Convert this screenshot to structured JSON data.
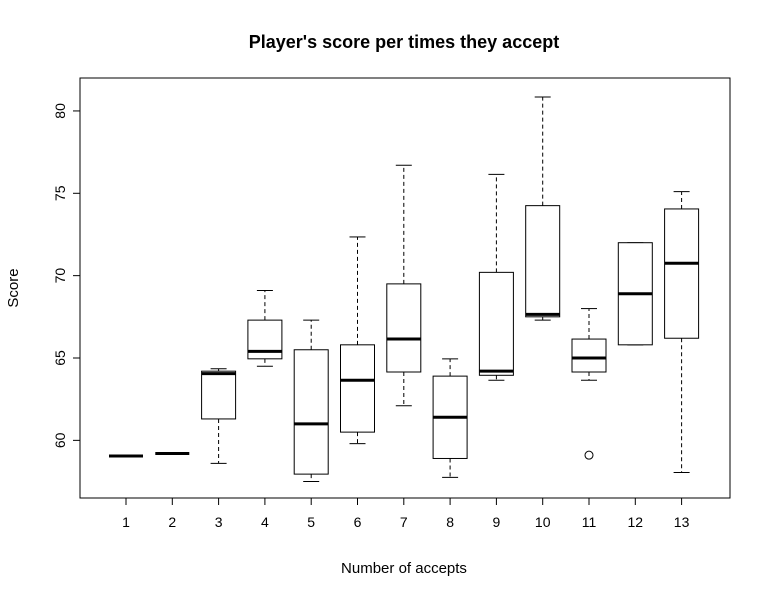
{
  "chart_data": {
    "type": "boxplot",
    "title": "Player's score per times they accept",
    "xlabel": "Number of accepts",
    "ylabel": "Score",
    "categories": [
      "1",
      "2",
      "3",
      "4",
      "5",
      "6",
      "7",
      "8",
      "9",
      "10",
      "11",
      "12",
      "13"
    ],
    "ylim": [
      56.5,
      82
    ],
    "yticks": [
      60,
      65,
      70,
      75,
      80
    ],
    "ytick_labels": [
      "60",
      "65",
      "70",
      "75",
      "80"
    ],
    "grid": false,
    "legend": "none",
    "boxes": [
      {
        "category": "1",
        "whisker_low": 59.05,
        "q1": 59.05,
        "median": 59.05,
        "q3": 59.05,
        "whisker_high": 59.05,
        "outliers": []
      },
      {
        "category": "2",
        "whisker_low": 59.2,
        "q1": 59.2,
        "median": 59.2,
        "q3": 59.2,
        "whisker_high": 59.2,
        "outliers": []
      },
      {
        "category": "3",
        "whisker_low": 58.6,
        "q1": 61.3,
        "median": 64.05,
        "q3": 64.2,
        "whisker_high": 64.35,
        "outliers": []
      },
      {
        "category": "4",
        "whisker_low": 64.5,
        "q1": 64.95,
        "median": 65.4,
        "q3": 67.3,
        "whisker_high": 69.1,
        "outliers": []
      },
      {
        "category": "5",
        "whisker_low": 57.5,
        "q1": 57.95,
        "median": 61.0,
        "q3": 65.5,
        "whisker_high": 67.3,
        "outliers": []
      },
      {
        "category": "6",
        "whisker_low": 59.8,
        "q1": 60.5,
        "median": 63.65,
        "q3": 65.8,
        "whisker_high": 72.35,
        "outliers": []
      },
      {
        "category": "7",
        "whisker_low": 62.1,
        "q1": 64.15,
        "median": 66.15,
        "q3": 69.5,
        "whisker_high": 76.7,
        "outliers": []
      },
      {
        "category": "8",
        "whisker_low": 57.75,
        "q1": 58.9,
        "median": 61.4,
        "q3": 63.9,
        "whisker_high": 64.95,
        "outliers": []
      },
      {
        "category": "9",
        "whisker_low": 63.65,
        "q1": 63.95,
        "median": 64.2,
        "q3": 70.2,
        "whisker_high": 76.15,
        "outliers": []
      },
      {
        "category": "10",
        "whisker_low": 67.3,
        "q1": 67.5,
        "median": 67.65,
        "q3": 74.25,
        "whisker_high": 80.85,
        "outliers": []
      },
      {
        "category": "11",
        "whisker_low": 63.65,
        "q1": 64.15,
        "median": 65.0,
        "q3": 66.15,
        "whisker_high": 68.0,
        "outliers": [
          59.1
        ]
      },
      {
        "category": "12",
        "whisker_low": 65.8,
        "q1": 65.8,
        "median": 68.9,
        "q3": 72.0,
        "whisker_high": 72.0,
        "outliers": []
      },
      {
        "category": "13",
        "whisker_low": 58.05,
        "q1": 66.2,
        "median": 70.75,
        "q3": 74.05,
        "whisker_high": 75.1,
        "outliers": []
      }
    ],
    "colors": {
      "line": "#000000",
      "box_fill": "#ffffff",
      "background": "#ffffff"
    }
  }
}
